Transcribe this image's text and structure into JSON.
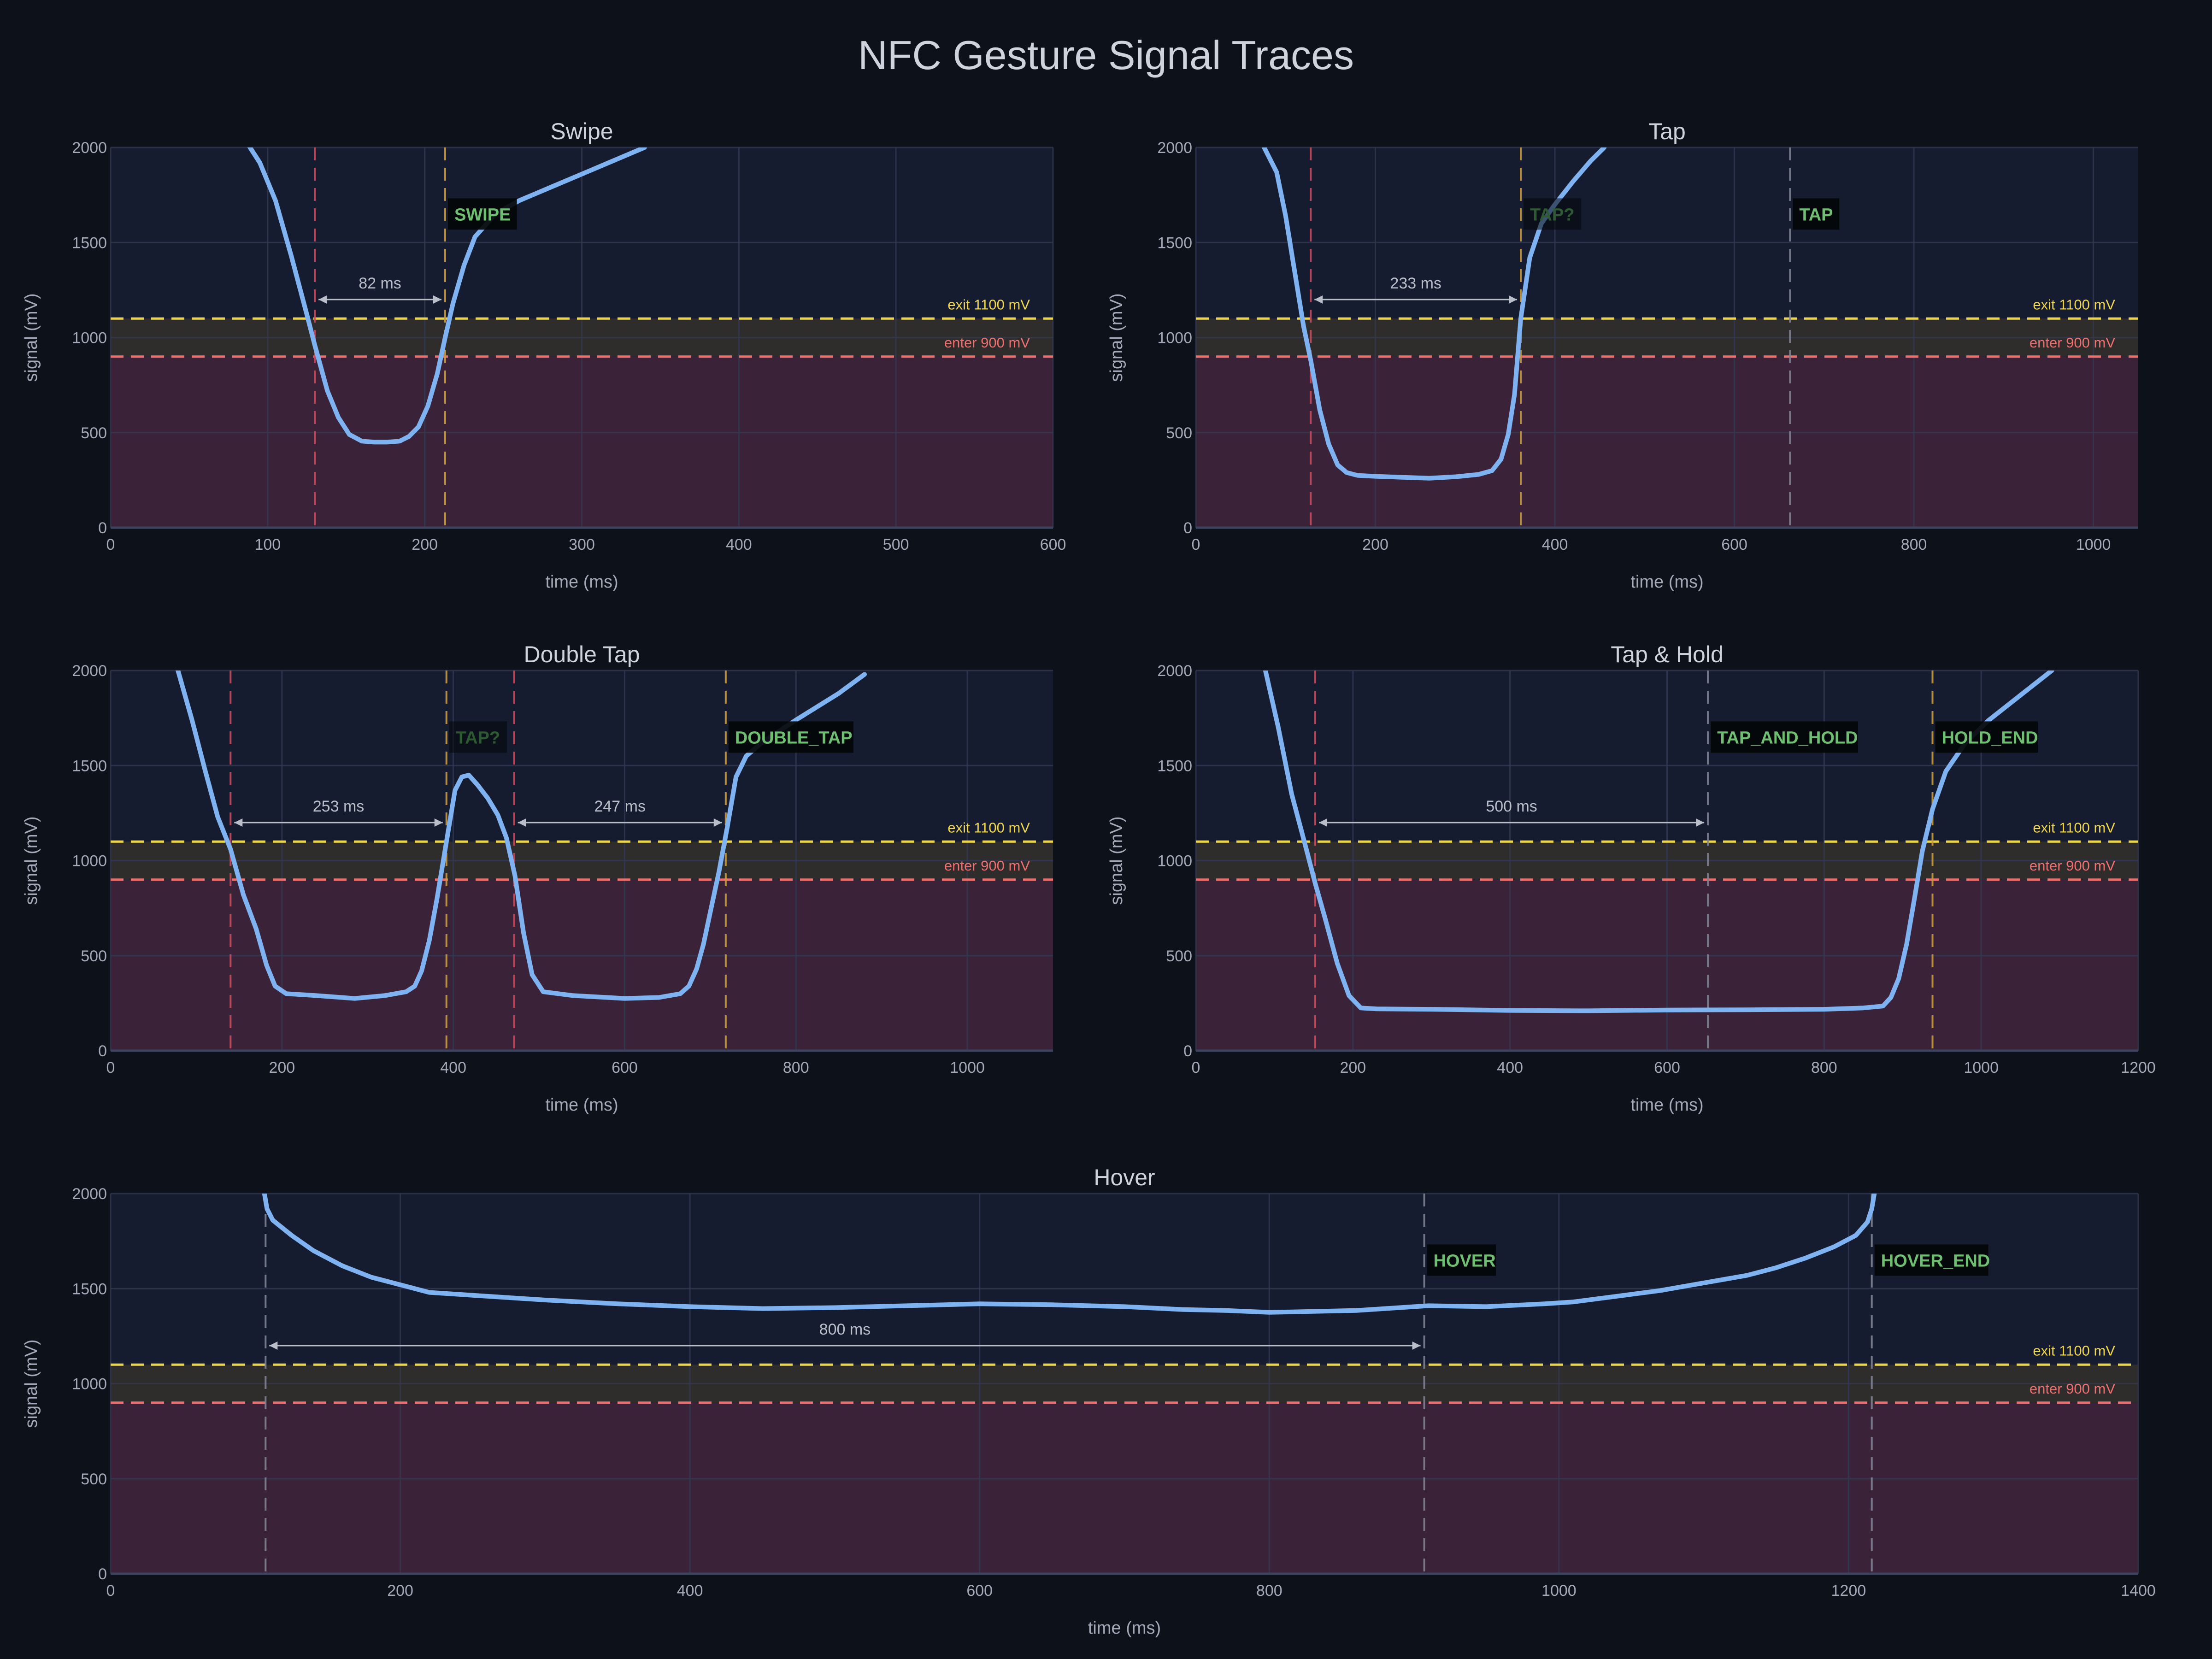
{
  "title": "NFC Gesture Signal Traces",
  "colors": {
    "background": "#0d111a",
    "plot_bg": "#161c30",
    "below_enter_band": "#3a2338",
    "hysteresis_band": "#2f2c2c",
    "grid": "#323a55",
    "axis_text": "#a3a9b8",
    "title_text": "#cfd3dd",
    "trace": "#7fb2f0",
    "exit_threshold": "#f0d64a",
    "enter_threshold": "#f07070",
    "marker_enter": "#c74b5e",
    "marker_exit": "#c79a42",
    "marker_neutral": "#7d8191",
    "label_text": "#6fbf73",
    "label_text_faint": "#2d5a32",
    "label_bg": "#040608",
    "duration_text": "#b9bec9"
  },
  "chart_data": [
    {
      "type": "line",
      "title": "Swipe",
      "xlabel": "time (ms)",
      "ylabel": "signal (mV)",
      "xlim": [
        0,
        600
      ],
      "ylim": [
        0,
        2000
      ],
      "xticks": [
        0,
        100,
        200,
        300,
        400,
        500,
        600
      ],
      "yticks": [
        0,
        500,
        1000,
        1500,
        2000
      ],
      "grid": true,
      "thresholds": {
        "exit": 1100,
        "enter": 900,
        "exit_label": "exit 1100 mV",
        "enter_label": "enter 900 mV"
      },
      "series": [
        {
          "x": [
            88,
            95,
            105,
            115,
            125,
            130,
            138,
            145,
            152,
            160,
            168,
            176,
            184,
            190,
            196,
            202,
            208,
            213,
            218,
            225,
            232,
            245,
            260,
            280,
            300,
            320,
            340
          ],
          "y": [
            2010,
            1920,
            1720,
            1430,
            1120,
            960,
            720,
            580,
            490,
            455,
            450,
            450,
            455,
            480,
            530,
            640,
            810,
            1000,
            1180,
            1380,
            1530,
            1650,
            1720,
            1790,
            1860,
            1930,
            2000
          ]
        }
      ],
      "markers": [
        {
          "x": 130,
          "kind": "enter"
        },
        {
          "x": 213,
          "kind": "exit"
        }
      ],
      "durations": [
        {
          "x0": 130,
          "x1": 213,
          "y": 1200,
          "label": "82 ms"
        }
      ],
      "labels": [
        {
          "x": 213,
          "text": "SWIPE",
          "faint": false
        }
      ]
    },
    {
      "type": "line",
      "title": "Tap",
      "xlabel": "time (ms)",
      "ylabel": "signal (mV)",
      "xlim": [
        0,
        1050
      ],
      "ylim": [
        0,
        2000
      ],
      "xticks": [
        0,
        200,
        400,
        600,
        800,
        1000
      ],
      "yticks": [
        0,
        500,
        1000,
        1500,
        2000
      ],
      "grid": true,
      "thresholds": {
        "exit": 1100,
        "enter": 900,
        "exit_label": "exit 1100 mV",
        "enter_label": "enter 900 mV"
      },
      "series": [
        {
          "x": [
            75,
            90,
            100,
            110,
            120,
            128,
            138,
            148,
            158,
            168,
            180,
            200,
            230,
            260,
            290,
            315,
            330,
            340,
            348,
            355,
            362,
            372,
            385,
            400,
            420,
            440,
            455
          ],
          "y": [
            2010,
            1870,
            1640,
            1350,
            1060,
            880,
            620,
            440,
            330,
            290,
            275,
            270,
            265,
            260,
            268,
            280,
            300,
            360,
            490,
            700,
            1100,
            1420,
            1600,
            1700,
            1820,
            1930,
            2000
          ]
        }
      ],
      "markers": [
        {
          "x": 128,
          "kind": "enter"
        },
        {
          "x": 362,
          "kind": "exit"
        },
        {
          "x": 662,
          "kind": "neutral"
        }
      ],
      "durations": [
        {
          "x0": 128,
          "x1": 362,
          "y": 1200,
          "label": "233 ms"
        }
      ],
      "labels": [
        {
          "x": 362,
          "text": "TAP?",
          "faint": true
        },
        {
          "x": 662,
          "text": "TAP",
          "faint": false
        }
      ]
    },
    {
      "type": "line",
      "title": "Double Tap",
      "xlabel": "time (ms)",
      "ylabel": "signal (mV)",
      "xlim": [
        0,
        1100
      ],
      "ylim": [
        0,
        2000
      ],
      "xticks": [
        0,
        200,
        400,
        600,
        800,
        1000
      ],
      "yticks": [
        0,
        500,
        1000,
        1500,
        2000
      ],
      "grid": true,
      "thresholds": {
        "exit": 1100,
        "enter": 900,
        "exit_label": "exit 1100 mV",
        "enter_label": "enter 900 mV"
      },
      "series": [
        {
          "x": [
            78,
            95,
            110,
            125,
            140,
            155,
            170,
            182,
            192,
            205,
            240,
            285,
            320,
            345,
            355,
            363,
            372,
            381,
            392,
            402,
            410,
            418,
            428,
            440,
            452,
            462,
            472,
            482,
            492,
            505,
            540,
            600,
            640,
            665,
            675,
            684,
            692,
            700,
            710,
            720,
            730,
            742,
            760,
            800,
            850,
            880
          ],
          "y": [
            2010,
            1740,
            1480,
            1230,
            1060,
            820,
            640,
            450,
            340,
            300,
            290,
            275,
            290,
            310,
            340,
            420,
            580,
            800,
            1100,
            1370,
            1440,
            1450,
            1400,
            1330,
            1240,
            1120,
            920,
            620,
            400,
            310,
            290,
            275,
            280,
            300,
            340,
            430,
            560,
            730,
            940,
            1180,
            1440,
            1550,
            1620,
            1740,
            1880,
            1980
          ]
        }
      ],
      "markers": [
        {
          "x": 140,
          "kind": "enter"
        },
        {
          "x": 392,
          "kind": "exit"
        },
        {
          "x": 471,
          "kind": "enter"
        },
        {
          "x": 718,
          "kind": "exit"
        }
      ],
      "durations": [
        {
          "x0": 140,
          "x1": 392,
          "y": 1200,
          "label": "253 ms"
        },
        {
          "x0": 471,
          "x1": 718,
          "y": 1200,
          "label": "247 ms"
        }
      ],
      "labels": [
        {
          "x": 392,
          "text": "TAP?",
          "faint": true
        },
        {
          "x": 718,
          "text": "DOUBLE_TAP",
          "faint": false
        }
      ]
    },
    {
      "type": "line",
      "title": "Tap & Hold",
      "xlabel": "time (ms)",
      "ylabel": "signal (mV)",
      "xlim": [
        0,
        1200
      ],
      "ylim": [
        0,
        2000
      ],
      "xticks": [
        0,
        200,
        400,
        600,
        800,
        1000,
        1200
      ],
      "yticks": [
        0,
        500,
        1000,
        1500,
        2000
      ],
      "grid": true,
      "thresholds": {
        "exit": 1100,
        "enter": 900,
        "exit_label": "exit 1100 mV",
        "enter_label": "enter 900 mV"
      },
      "series": [
        {
          "x": [
            88,
            105,
            122,
            140,
            152,
            165,
            180,
            195,
            210,
            230,
            300,
            400,
            500,
            600,
            700,
            800,
            850,
            875,
            885,
            895,
            905,
            915,
            925,
            938,
            955,
            980,
            1010,
            1050,
            1090
          ],
          "y": [
            2010,
            1700,
            1350,
            1070,
            880,
            690,
            460,
            290,
            225,
            220,
            218,
            212,
            210,
            214,
            215,
            218,
            225,
            235,
            280,
            380,
            560,
            800,
            1050,
            1270,
            1470,
            1620,
            1740,
            1870,
            2000
          ]
        }
      ],
      "markers": [
        {
          "x": 152,
          "kind": "enter"
        },
        {
          "x": 652,
          "kind": "neutral"
        },
        {
          "x": 938,
          "kind": "exit"
        }
      ],
      "durations": [
        {
          "x0": 152,
          "x1": 652,
          "y": 1200,
          "label": "500 ms"
        }
      ],
      "labels": [
        {
          "x": 652,
          "text": "TAP_AND_HOLD",
          "faint": false
        },
        {
          "x": 938,
          "text": "HOLD_END",
          "faint": false
        }
      ]
    },
    {
      "type": "line",
      "title": "Hover",
      "xlabel": "time (ms)",
      "ylabel": "signal (mV)",
      "xlim": [
        0,
        1400
      ],
      "ylim": [
        0,
        2000
      ],
      "xticks": [
        0,
        200,
        400,
        600,
        800,
        1000,
        1200,
        1400
      ],
      "yticks": [
        0,
        500,
        1000,
        1500,
        2000
      ],
      "grid": true,
      "thresholds": {
        "exit": 1100,
        "enter": 900,
        "exit_label": "exit 1100 mV",
        "enter_label": "enter 900 mV"
      },
      "series": [
        {
          "x": [
            106,
            108,
            112,
            125,
            140,
            160,
            180,
            205,
            220,
            250,
            300,
            350,
            400,
            450,
            500,
            550,
            600,
            650,
            700,
            740,
            770,
            800,
            830,
            860,
            880,
            910,
            950,
            990,
            1010,
            1040,
            1070,
            1100,
            1130,
            1150,
            1170,
            1190,
            1205,
            1213,
            1216,
            1218
          ],
          "y": [
            2010,
            1920,
            1860,
            1780,
            1700,
            1620,
            1560,
            1510,
            1480,
            1465,
            1440,
            1420,
            1405,
            1395,
            1400,
            1410,
            1420,
            1415,
            1405,
            1390,
            1385,
            1375,
            1380,
            1385,
            1395,
            1410,
            1405,
            1420,
            1430,
            1460,
            1490,
            1530,
            1570,
            1610,
            1660,
            1720,
            1780,
            1850,
            1920,
            2010
          ]
        }
      ],
      "markers": [
        {
          "x": 107,
          "kind": "neutral"
        },
        {
          "x": 907,
          "kind": "neutral"
        },
        {
          "x": 1216,
          "kind": "neutral"
        }
      ],
      "durations": [
        {
          "x0": 107,
          "x1": 907,
          "y": 1200,
          "label": "800 ms"
        }
      ],
      "labels": [
        {
          "x": 907,
          "text": "HOVER",
          "faint": false
        },
        {
          "x": 1216,
          "text": "HOVER_END",
          "faint": false
        }
      ]
    }
  ]
}
